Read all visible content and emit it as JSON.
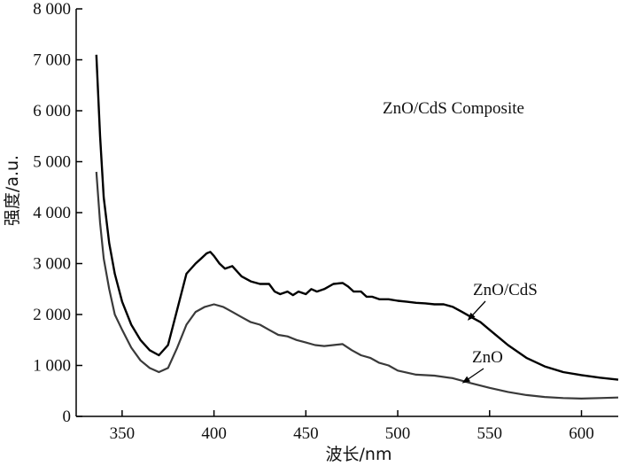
{
  "chart_data": {
    "type": "line",
    "title": "ZnO/CdS Composite",
    "xlabel": "波长/nm",
    "ylabel": "强度/a.u.",
    "xlim": [
      325,
      620
    ],
    "ylim": [
      0,
      8000
    ],
    "xticks": [
      350,
      400,
      450,
      500,
      550,
      600
    ],
    "yticks": [
      0,
      1000,
      2000,
      3000,
      4000,
      5000,
      6000,
      7000,
      8000
    ],
    "xtick_labels": [
      "350",
      "400",
      "450",
      "500",
      "550",
      "600"
    ],
    "ytick_labels": [
      "0",
      "1 000",
      "2 000",
      "3 000",
      "4 000",
      "5 000",
      "6 000",
      "7 000",
      "8 000"
    ],
    "grid": false,
    "series": [
      {
        "name": "ZnO/CdS",
        "color": "#000000",
        "x": [
          336,
          337,
          338,
          340,
          343,
          346,
          350,
          355,
          360,
          365,
          370,
          375,
          380,
          385,
          390,
          393,
          396,
          398,
          400,
          403,
          406,
          410,
          415,
          420,
          425,
          430,
          433,
          436,
          440,
          443,
          446,
          450,
          453,
          456,
          460,
          465,
          470,
          473,
          476,
          480,
          483,
          486,
          490,
          495,
          500,
          505,
          510,
          515,
          520,
          525,
          530,
          535,
          540,
          545,
          550,
          555,
          560,
          570,
          580,
          590,
          600,
          610,
          620
        ],
        "y": [
          7100,
          6300,
          5500,
          4300,
          3400,
          2800,
          2250,
          1800,
          1500,
          1300,
          1200,
          1400,
          2100,
          2800,
          3000,
          3100,
          3200,
          3230,
          3150,
          3000,
          2900,
          2950,
          2750,
          2650,
          2600,
          2600,
          2450,
          2400,
          2450,
          2380,
          2450,
          2400,
          2500,
          2450,
          2500,
          2600,
          2620,
          2550,
          2450,
          2450,
          2350,
          2350,
          2300,
          2300,
          2270,
          2250,
          2230,
          2220,
          2200,
          2200,
          2150,
          2050,
          1950,
          1850,
          1700,
          1550,
          1400,
          1150,
          980,
          870,
          810,
          760,
          720
        ]
      },
      {
        "name": "ZnO",
        "color": "#3a3a3a",
        "x": [
          336,
          337,
          338,
          340,
          343,
          346,
          350,
          355,
          360,
          365,
          370,
          375,
          380,
          385,
          390,
          395,
          400,
          405,
          410,
          415,
          420,
          425,
          430,
          435,
          440,
          445,
          450,
          455,
          460,
          465,
          470,
          475,
          480,
          485,
          490,
          495,
          500,
          510,
          520,
          530,
          540,
          550,
          560,
          570,
          580,
          590,
          600,
          610,
          620
        ],
        "y": [
          4800,
          4300,
          3800,
          3100,
          2500,
          2000,
          1700,
          1350,
          1100,
          950,
          870,
          950,
          1350,
          1800,
          2050,
          2150,
          2200,
          2150,
          2050,
          1950,
          1850,
          1800,
          1700,
          1600,
          1570,
          1500,
          1450,
          1400,
          1380,
          1400,
          1420,
          1300,
          1200,
          1150,
          1050,
          1000,
          900,
          820,
          800,
          750,
          650,
          560,
          480,
          420,
          380,
          360,
          350,
          360,
          370
        ]
      }
    ],
    "annotations": [
      {
        "text": "ZnO/CdS",
        "target_x": 538,
        "target_y": 1880
      },
      {
        "text": "ZnO",
        "target_x": 535,
        "target_y": 650
      }
    ]
  }
}
